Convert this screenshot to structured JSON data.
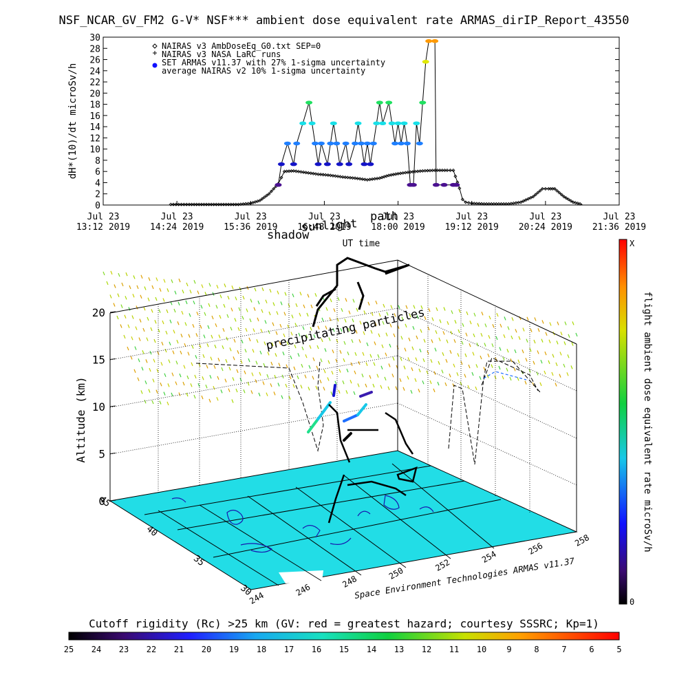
{
  "title": "NSF_NCAR_GV_FM2 G-V* NSF*** ambient dose equivalent rate ARMAS_dirIP_Report_43550",
  "chart_data": [
    {
      "type": "scatter",
      "ylabel": "dH*(10)/dt microSv/h",
      "xlabel": "UT time",
      "xlim": [
        "Jul 23 13:12 2019",
        "Jul 23 21:36 2019"
      ],
      "ylim": [
        0,
        30
      ],
      "grid": false,
      "legend_position": "top-left",
      "y_ticks": [
        0,
        2,
        4,
        6,
        8,
        10,
        12,
        14,
        16,
        18,
        20,
        22,
        24,
        26,
        28,
        30
      ],
      "x_ticks": [
        {
          "line1": "Jul 23",
          "line2": "13:12 2019"
        },
        {
          "line1": "Jul 23",
          "line2": "14:24 2019"
        },
        {
          "line1": "Jul 23",
          "line2": "15:36 2019"
        },
        {
          "line1": "Jul 23",
          "line2": "16:48 2019"
        },
        {
          "line1": "Jul 23",
          "line2": "18:00 2019"
        },
        {
          "line1": "Jul 23",
          "line2": "19:12 2019"
        },
        {
          "line1": "Jul 23",
          "line2": "20:24 2019"
        },
        {
          "line1": "Jul 23",
          "line2": "21:36 2019"
        }
      ],
      "legend": [
        {
          "symbol": "diamond",
          "label": "NAIRAS v3 AmbDoseEq_G0.txt SEP=0"
        },
        {
          "symbol": "plus",
          "label": "NAIRAS v3 NASA LaRC runs"
        },
        {
          "symbol": "dot",
          "label": "SET ARMAS v11.37 with 27% 1-sigma uncertainty"
        },
        {
          "symbol": "none",
          "label": "average NAIRAS v2 10% 1-sigma uncertainty"
        }
      ],
      "series": [
        {
          "name": "NAIRAS v3 AmbDoseEq_G0.txt SEP=0",
          "x_hours": [
            14.3,
            14.6,
            15.0,
            15.4,
            15.6,
            15.75,
            15.9,
            16.05,
            16.15,
            16.3,
            16.5,
            16.7,
            16.9,
            17.1,
            17.3,
            17.5,
            17.7,
            17.85,
            18.0,
            18.2,
            18.4,
            18.6,
            18.8,
            18.9,
            19.0,
            19.05,
            19.1,
            19.2,
            19.4,
            19.6,
            19.8,
            20.0,
            20.2,
            20.35,
            20.45,
            20.55,
            20.7,
            20.85,
            21.0
          ],
          "y": [
            0.1,
            0.1,
            0.1,
            0.1,
            0.3,
            0.8,
            2.0,
            3.8,
            6.0,
            6.1,
            5.8,
            5.5,
            5.3,
            5.0,
            4.8,
            4.5,
            4.8,
            5.3,
            5.6,
            5.9,
            6.1,
            6.2,
            6.2,
            6.2,
            3.0,
            1.0,
            0.5,
            0.3,
            0.2,
            0.2,
            0.2,
            0.5,
            1.5,
            2.9,
            2.9,
            2.9,
            1.5,
            0.5,
            0.1
          ]
        },
        {
          "name": "SET ARMAS v11.37 with 27% 1-sigma uncertainty",
          "x_hours": [
            16.05,
            16.1,
            16.2,
            16.3,
            16.35,
            16.45,
            16.55,
            16.6,
            16.65,
            16.7,
            16.75,
            16.85,
            16.9,
            16.95,
            17.0,
            17.05,
            17.15,
            17.2,
            17.3,
            17.35,
            17.4,
            17.45,
            17.5,
            17.55,
            17.6,
            17.65,
            17.7,
            17.75,
            17.85,
            17.9,
            17.95,
            18.0,
            18.05,
            18.1,
            18.15,
            18.2,
            18.25,
            18.3,
            18.35,
            18.4,
            18.45,
            18.5,
            18.6,
            18.62,
            18.75,
            18.9,
            18.95
          ],
          "y": [
            3.6,
            7.3,
            11.0,
            7.3,
            11.0,
            14.6,
            18.3,
            14.6,
            11.0,
            7.3,
            11.0,
            7.3,
            11.0,
            14.6,
            11.0,
            7.3,
            11.0,
            7.3,
            11.0,
            14.6,
            11.0,
            7.3,
            11.0,
            7.3,
            11.0,
            14.6,
            18.3,
            14.6,
            18.3,
            14.6,
            11.0,
            14.6,
            11.0,
            14.6,
            11.0,
            3.6,
            3.6,
            14.6,
            11.0,
            18.3,
            25.6,
            29.3,
            29.3,
            3.6,
            3.6,
            3.6,
            3.6
          ]
        }
      ]
    },
    {
      "type": "scatter",
      "title": "",
      "zlabel": "Altitude (km)",
      "z_ticks": [
        0,
        5,
        10,
        15,
        20
      ],
      "lat_ticks": [
        30,
        35,
        40,
        45
      ],
      "lon_ticks": [
        244,
        246,
        248,
        250,
        252,
        254,
        256,
        258
      ],
      "annotations": [
        "shadow",
        "sunlight",
        "path",
        "UT time",
        "precipitating particles"
      ],
      "credit": "Space Environment Technologies ARMAS v11.37",
      "colorbar": {
        "label": "flight ambient dose equivalent rate microSv/h",
        "top": "X",
        "bottom": "0"
      },
      "bottom_colorbar": {
        "title": "Cutoff rigidity (Rc) >25 km (GV: red = greatest hazard; courtesy SSSRC; Kp=1)",
        "ticks": [
          25,
          24,
          23,
          22,
          21,
          20,
          19,
          18,
          17,
          16,
          15,
          14,
          13,
          12,
          11,
          10,
          9,
          8,
          7,
          6,
          5
        ]
      }
    }
  ]
}
